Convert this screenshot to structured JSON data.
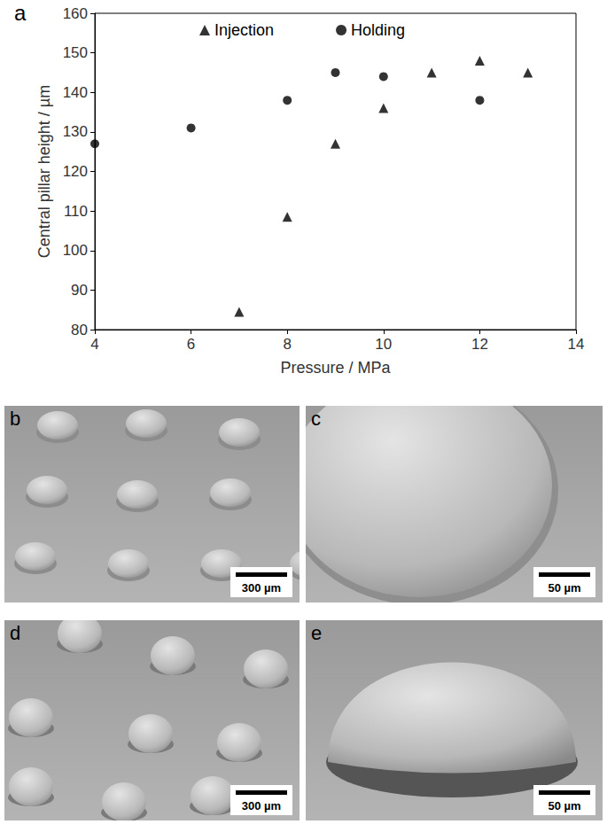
{
  "chart_data": {
    "type": "scatter",
    "x_label": "Pressure / MPa",
    "y_label": "Central pillar height / µm",
    "xlim": [
      4,
      14
    ],
    "xticks": [
      4,
      6,
      8,
      10,
      12,
      14
    ],
    "ylim": [
      80,
      160
    ],
    "yticks": [
      80,
      90,
      100,
      110,
      120,
      130,
      140,
      150,
      160
    ],
    "grid": false,
    "legend": "top",
    "series": [
      {
        "name": "Injection",
        "color": "#000000",
        "marker": "triangle",
        "x": [
          7,
          8,
          9,
          10,
          11,
          12,
          13
        ],
        "values": [
          84.5,
          108.5,
          127,
          136,
          145,
          148,
          145
        ]
      },
      {
        "name": "Holding",
        "color": "#000000",
        "marker": "circle",
        "x": [
          4,
          6,
          8,
          9,
          10,
          12
        ],
        "values": [
          127,
          131,
          138,
          145,
          144,
          138
        ]
      }
    ]
  },
  "chart_label": "a",
  "image_panels": [
    {
      "label": "b",
      "scale_bar": "300 µm"
    },
    {
      "label": "c",
      "scale_bar": "50 µm"
    },
    {
      "label": "d",
      "scale_bar": "300 µm"
    },
    {
      "label": "e",
      "scale_bar": "50 µm"
    }
  ]
}
